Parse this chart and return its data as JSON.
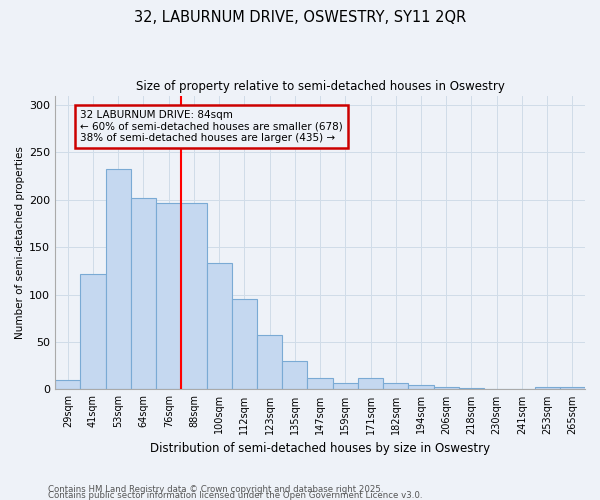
{
  "title_line1": "32, LABURNUM DRIVE, OSWESTRY, SY11 2QR",
  "title_line2": "Size of property relative to semi-detached houses in Oswestry",
  "xlabel": "Distribution of semi-detached houses by size in Oswestry",
  "ylabel": "Number of semi-detached properties",
  "categories": [
    "29sqm",
    "41sqm",
    "53sqm",
    "64sqm",
    "76sqm",
    "88sqm",
    "100sqm",
    "112sqm",
    "123sqm",
    "135sqm",
    "147sqm",
    "159sqm",
    "171sqm",
    "182sqm",
    "194sqm",
    "206sqm",
    "218sqm",
    "230sqm",
    "241sqm",
    "253sqm",
    "265sqm"
  ],
  "values": [
    10,
    122,
    233,
    202,
    197,
    197,
    133,
    95,
    57,
    30,
    12,
    7,
    12,
    7,
    5,
    3,
    2,
    0,
    0,
    3,
    3
  ],
  "bar_color": "#c5d8f0",
  "bar_edge_color": "#7aaad4",
  "subject_line_idx": 4.5,
  "subject_label": "32 LABURNUM DRIVE: 84sqm",
  "pct_smaller": "60% of semi-detached houses are smaller (678)",
  "pct_larger": "38% of semi-detached houses are larger (435)",
  "annotation_box_edgecolor": "#cc0000",
  "grid_color": "#d0dce8",
  "background_color": "#eef2f8",
  "footer_line1": "Contains HM Land Registry data © Crown copyright and database right 2025.",
  "footer_line2": "Contains public sector information licensed under the Open Government Licence v3.0.",
  "ylim": [
    0,
    310
  ],
  "yticks": [
    0,
    50,
    100,
    150,
    200,
    250,
    300
  ]
}
